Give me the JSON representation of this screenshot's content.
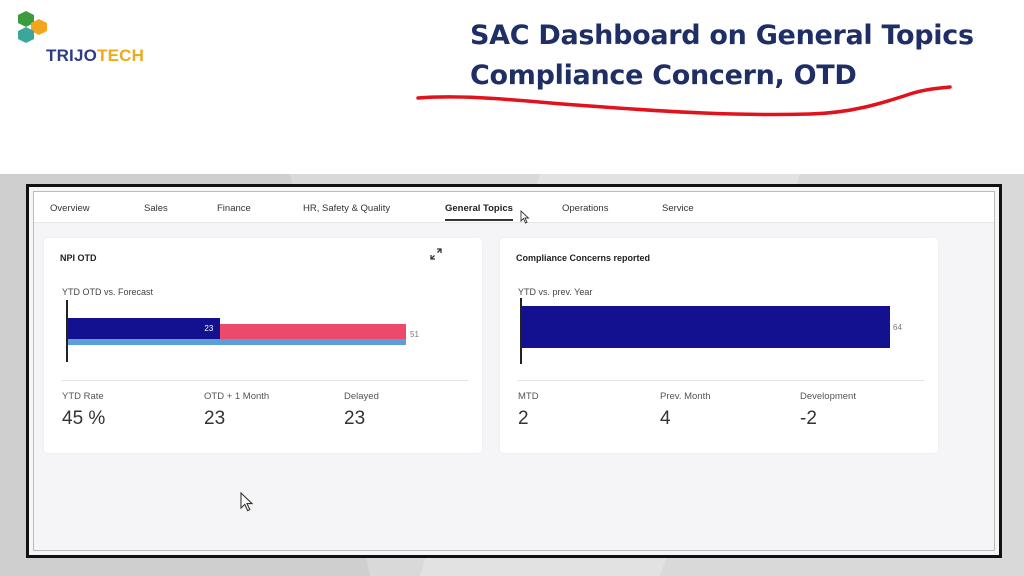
{
  "brand": {
    "name_primary": "TRIJO",
    "name_secondary": "TECH"
  },
  "headline": {
    "line1": "SAC Dashboard on General Topics",
    "line2": "Compliance Concern, OTD"
  },
  "tabs": [
    {
      "label": "Overview"
    },
    {
      "label": "Sales"
    },
    {
      "label": "Finance"
    },
    {
      "label": "HR, Safety & Quality"
    },
    {
      "label": "General Topics",
      "active": true
    },
    {
      "label": "Operations"
    },
    {
      "label": "Service"
    }
  ],
  "cards": {
    "npi_otd": {
      "title": "NPI OTD",
      "subtitle": "YTD OTD vs. Forecast",
      "bar": {
        "actual": 23,
        "forecast": 51,
        "max": 51
      },
      "kpis": [
        {
          "label": "YTD Rate",
          "value": "45 %"
        },
        {
          "label": "OTD + 1 Month",
          "value": "23"
        },
        {
          "label": "Delayed",
          "value": "23"
        }
      ]
    },
    "compliance": {
      "title": "Compliance Concerns reported",
      "subtitle": "YTD vs. prev. Year",
      "bar": {
        "value": 64,
        "max": 64
      },
      "kpis": [
        {
          "label": "MTD",
          "value": "2"
        },
        {
          "label": "Prev. Month",
          "value": "4"
        },
        {
          "label": "Development",
          "value": "-2"
        }
      ]
    }
  },
  "colors": {
    "headline": "#1f2f66",
    "underline": "#e0121b",
    "bar_actual": "#13118f",
    "bar_forecast": "#ec4a6c",
    "bar_baseline": "#5b9fd6",
    "bar_compliance": "#13118f"
  },
  "icons": {
    "expand": "expand-arrows-icon",
    "cursor": "mouse-pointer-icon"
  }
}
